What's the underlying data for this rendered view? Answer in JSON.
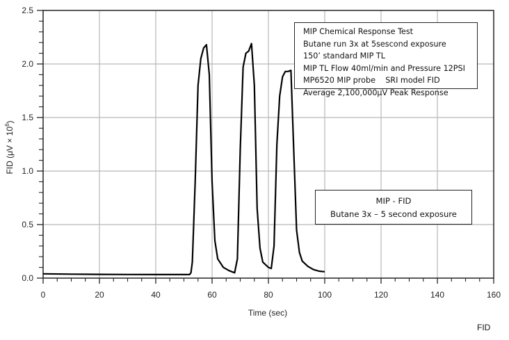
{
  "chart_data": {
    "type": "line",
    "title": "MIP - FID",
    "subtitle": "Butane 3x – 5 second exposure",
    "xlabel": "Time (sec)",
    "ylabel": "FID (μV × 10⁶)",
    "xlim": [
      0,
      160
    ],
    "ylim": [
      0,
      2.5
    ],
    "x_ticks": [
      0,
      20,
      40,
      60,
      80,
      100,
      120,
      140,
      160
    ],
    "y_ticks": [
      0.0,
      0.5,
      1.0,
      1.5,
      2.0,
      2.5
    ],
    "x_tick_labels": [
      "0",
      "20",
      "40",
      "60",
      "80",
      "100",
      "120",
      "140",
      "160"
    ],
    "y_tick_labels": [
      "0.0",
      "0.5",
      "1.0",
      "1.5",
      "2.0",
      "2.5"
    ],
    "grid": true,
    "legend": null,
    "series": [
      {
        "name": "FID",
        "color": "#000000",
        "x": [
          0,
          10,
          20,
          30,
          40,
          52,
          52.5,
          53,
          54,
          55,
          56,
          57,
          58,
          59,
          60,
          61,
          62,
          64,
          66,
          68,
          69,
          70,
          71,
          72,
          73,
          74,
          75,
          76,
          77,
          78,
          80,
          81,
          82,
          83,
          84,
          85,
          86,
          87,
          88,
          89,
          90,
          91,
          92,
          94,
          96,
          98,
          100
        ],
        "values": [
          0.04,
          0.037,
          0.035,
          0.034,
          0.033,
          0.033,
          0.05,
          0.15,
          0.9,
          1.8,
          2.05,
          2.15,
          2.18,
          1.9,
          0.9,
          0.35,
          0.18,
          0.1,
          0.07,
          0.05,
          0.18,
          1.2,
          1.97,
          2.1,
          2.12,
          2.19,
          1.8,
          0.65,
          0.28,
          0.15,
          0.1,
          0.09,
          0.3,
          1.25,
          1.7,
          1.88,
          1.93,
          1.93,
          1.94,
          1.2,
          0.45,
          0.24,
          0.16,
          0.11,
          0.08,
          0.065,
          0.06
        ]
      }
    ],
    "annotations": [
      "MIP Chemical Response Test",
      "Butane run 3x at 5sescond exposure",
      "150’ standard MIP TL",
      "MIP TL Flow 40ml/min and Pressure 12PSI",
      "MP6520 MIP probe    SRI model FID",
      "Average 2,100,000μV Peak Response"
    ]
  },
  "info_box": {
    "lines": [
      "MIP Chemical Response Test",
      "Butane run 3x at 5sescond exposure",
      "150’ standard MIP TL",
      "MIP TL Flow 40ml/min and Pressure 12PSI",
      "MP6520 MIP probe    SRI model FID",
      "Average 2,100,000μV Peak Response"
    ]
  },
  "title_box": {
    "title": "MIP - FID",
    "subtitle": "Butane 3x – 5 second exposure"
  },
  "axes": {
    "xlabel": "Time (sec)",
    "ylabel_main": "FID (μV × 10",
    "ylabel_exp": "6",
    "ylabel_close": ")"
  },
  "corner_label": "FID"
}
